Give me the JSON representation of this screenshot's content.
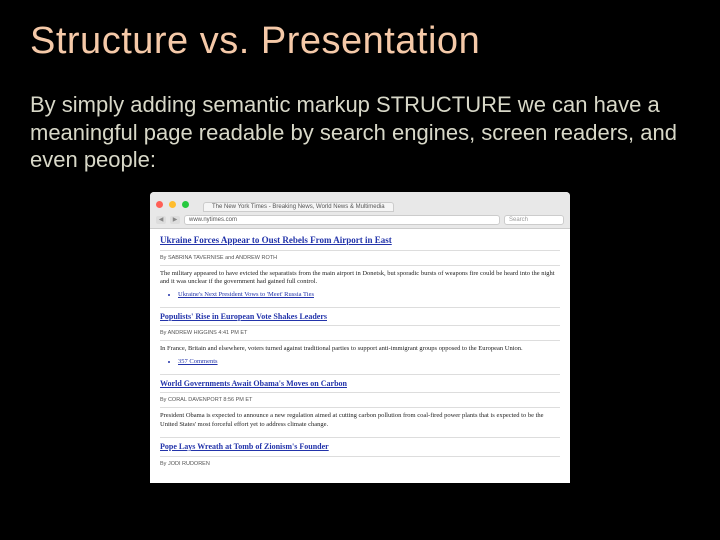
{
  "slide": {
    "title": "Structure vs. Presentation",
    "body": "By simply adding semantic markup STRUCTURE we can have a meaningful page readable by search engines, screen readers, and even people:"
  },
  "browser": {
    "tab_title": "The New York Times - Breaking News, World News & Multimedia",
    "url": "www.nytimes.com",
    "search_placeholder": "Search"
  },
  "articles": [
    {
      "headline": "Ukraine Forces Appear to Oust Rebels From Airport in East",
      "byline": "By SABRINA TAVERNISE and ANDREW ROTH",
      "summary": "The military appeared to have evicted the separatists from the main airport in Donetsk, but sporadic bursts of weapons fire could be heard into the night and it was unclear if the government had gained full control.",
      "links": [
        "Ukraine's Next President Vows to 'Meet' Russia Ties"
      ]
    },
    {
      "headline": "Populists' Rise in European Vote Shakes Leaders",
      "byline": "By ANDREW HIGGINS 4:41 PM ET",
      "summary": "In France, Britain and elsewhere, voters turned against traditional parties to support anti-immigrant groups opposed to the European Union.",
      "links": [
        "357 Comments"
      ]
    },
    {
      "headline": "World Governments Await Obama's Moves on Carbon",
      "byline": "By CORAL DAVENPORT 8:56 PM ET",
      "summary": "President Obama is expected to announce a new regulation aimed at cutting carbon pollution from coal-fired power plants that is expected to be the United States' most forceful effort yet to address climate change.",
      "links": []
    },
    {
      "headline": "Pope Lays Wreath at Tomb of Zionism's Founder",
      "byline": "By JODI RUDOREN",
      "summary": "",
      "links": []
    }
  ]
}
